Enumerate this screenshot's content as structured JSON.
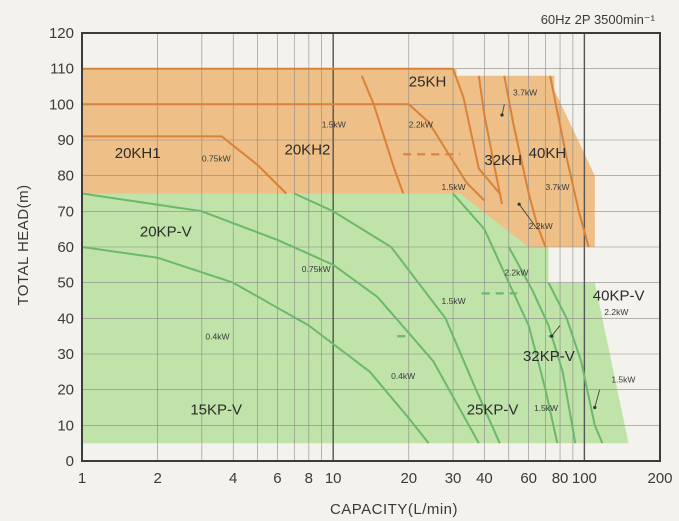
{
  "chart_data": {
    "type": "area",
    "title": "60Hz 2P 3500min⁻¹",
    "xlabel": "CAPACITY(L/min)",
    "ylabel": "TOTAL HEAD(m)",
    "xscale": "log",
    "xlim": [
      1,
      200
    ],
    "ylim": [
      0,
      120
    ],
    "xticks": [
      {
        "v": 1,
        "label": "1"
      },
      {
        "v": 2,
        "label": "2"
      },
      {
        "v": 4,
        "label": "4"
      },
      {
        "v": 6,
        "label": "6"
      },
      {
        "v": 8,
        "label": "8"
      },
      {
        "v": 10,
        "label": "10"
      },
      {
        "v": 20,
        "label": "20"
      },
      {
        "v": 30,
        "label": "30"
      },
      {
        "v": 40,
        "label": "40"
      },
      {
        "v": 60,
        "label": "60"
      },
      {
        "v": 80,
        "label": "80"
      },
      {
        "v": 100,
        "label": "100"
      },
      {
        "v": 200,
        "label": "200"
      }
    ],
    "yticks": [
      0,
      10,
      20,
      30,
      40,
      50,
      60,
      70,
      80,
      90,
      100,
      110,
      120
    ],
    "grid": true,
    "colors": {
      "kh_region": "#eebf86",
      "kp_region": "#bfe3a8",
      "kh_curve": "#d8823a",
      "kp_curve": "#6cb86c",
      "frame": "#3c3c3c",
      "grid": "#8a8a8a"
    },
    "regions": [
      {
        "id": "kh",
        "points": [
          [
            1,
            75
          ],
          [
            1,
            110
          ],
          [
            31,
            110
          ],
          [
            31,
            108
          ],
          [
            76,
            108
          ],
          [
            76,
            104
          ],
          [
            110,
            80
          ],
          [
            110,
            60
          ],
          [
            72,
            60
          ],
          [
            72,
            50
          ],
          [
            30,
            50
          ],
          [
            30,
            75
          ]
        ]
      },
      {
        "id": "kp",
        "points": [
          [
            1,
            75
          ],
          [
            30,
            75
          ],
          [
            32,
            75
          ],
          [
            60,
            60
          ],
          [
            72,
            60
          ],
          [
            72,
            50
          ],
          [
            110,
            50
          ],
          [
            150,
            5
          ],
          [
            1,
            5
          ]
        ]
      }
    ],
    "series": [
      {
        "model": "kh",
        "points": [
          [
            1,
            110
          ],
          [
            30,
            110
          ],
          [
            33,
            102
          ],
          [
            38,
            82
          ],
          [
            46,
            75
          ]
        ]
      },
      {
        "model": "kh",
        "points": [
          [
            1,
            100
          ],
          [
            20,
            100
          ],
          [
            24,
            95
          ],
          [
            34,
            78
          ],
          [
            40,
            73
          ]
        ]
      },
      {
        "model": "kh",
        "points": [
          [
            1,
            91
          ],
          [
            3.6,
            91
          ],
          [
            5,
            83
          ],
          [
            6.5,
            75
          ]
        ]
      },
      {
        "model": "kh",
        "points": [
          [
            13,
            108
          ],
          [
            14.5,
            100
          ],
          [
            17.5,
            82
          ],
          [
            19,
            75
          ]
        ]
      },
      {
        "model": "kh",
        "points": [
          [
            38,
            108
          ],
          [
            40,
            97
          ],
          [
            44,
            82
          ],
          [
            47,
            72
          ]
        ]
      },
      {
        "model": "kh",
        "points": [
          [
            48,
            108
          ],
          [
            52,
            95
          ],
          [
            60,
            75
          ],
          [
            65,
            66
          ],
          [
            70,
            60
          ]
        ]
      },
      {
        "model": "kh",
        "points": [
          [
            73,
            108
          ],
          [
            78,
            98
          ],
          [
            85,
            85
          ],
          [
            95,
            70
          ],
          [
            104,
            60
          ]
        ]
      },
      {
        "model": "kp",
        "points": [
          [
            1,
            60
          ],
          [
            2,
            57
          ],
          [
            4,
            50
          ],
          [
            8,
            38
          ],
          [
            14,
            25
          ],
          [
            20,
            12
          ],
          [
            24,
            5
          ]
        ]
      },
      {
        "model": "kp",
        "points": [
          [
            1,
            75
          ],
          [
            3,
            70
          ],
          [
            6,
            62
          ],
          [
            10,
            55
          ],
          [
            15,
            46
          ],
          [
            25,
            28
          ],
          [
            38,
            5
          ]
        ]
      },
      {
        "model": "kp",
        "points": [
          [
            7,
            75
          ],
          [
            10,
            70
          ],
          [
            17,
            60
          ],
          [
            28,
            40
          ],
          [
            36,
            22
          ],
          [
            46,
            5
          ]
        ]
      },
      {
        "model": "kp",
        "points": [
          [
            30,
            75
          ],
          [
            40,
            65
          ],
          [
            50,
            50
          ],
          [
            60,
            38
          ],
          [
            70,
            20
          ],
          [
            78,
            5
          ]
        ]
      },
      {
        "model": "kp",
        "points": [
          [
            50,
            60
          ],
          [
            62,
            48
          ],
          [
            72,
            38
          ],
          [
            82,
            25
          ],
          [
            92,
            5
          ]
        ]
      },
      {
        "model": "kp",
        "points": [
          [
            72,
            50
          ],
          [
            85,
            40
          ],
          [
            97,
            28
          ],
          [
            110,
            10
          ],
          [
            118,
            5
          ]
        ]
      }
    ],
    "dashed_limits": [
      {
        "points": [
          [
            19,
            86
          ],
          [
            32,
            86
          ]
        ]
      },
      {
        "points": [
          [
            39,
            47
          ],
          [
            54,
            47
          ]
        ]
      },
      {
        "points": [
          [
            18,
            35
          ],
          [
            20,
            35
          ]
        ]
      },
      {
        "points": [
          [
            72,
            35
          ],
          [
            76,
            35
          ]
        ]
      }
    ],
    "model_labels": [
      {
        "text": "20KH1",
        "at": [
          1.35,
          85
        ]
      },
      {
        "text": "20KH2",
        "at": [
          6.4,
          86
        ]
      },
      {
        "text": "25KH",
        "at": [
          20,
          105
        ]
      },
      {
        "text": "32KH",
        "at": [
          40,
          83
        ]
      },
      {
        "text": "40KH",
        "at": [
          60,
          85
        ]
      },
      {
        "text": "20KP-V",
        "at": [
          1.7,
          63
        ]
      },
      {
        "text": "40KP-V",
        "at": [
          108,
          45
        ]
      },
      {
        "text": "32KP-V",
        "at": [
          57,
          28
        ]
      },
      {
        "text": "15KP-V",
        "at": [
          2.7,
          13
        ]
      },
      {
        "text": "25KP-V",
        "at": [
          34,
          13
        ]
      }
    ],
    "kw_labels": [
      {
        "text": "1.5kW",
        "at": [
          9.0,
          93.5
        ]
      },
      {
        "text": "0.75kW",
        "at": [
          3.0,
          84
        ]
      },
      {
        "text": "2.2kW",
        "at": [
          20,
          93.5
        ]
      },
      {
        "text": "3.7kW",
        "at": [
          52,
          102.5
        ]
      },
      {
        "text": "1.5kW",
        "at": [
          27,
          76
        ]
      },
      {
        "text": "3.7kW",
        "at": [
          70,
          76
        ]
      },
      {
        "text": "2.2kW",
        "at": [
          60,
          65
        ]
      },
      {
        "text": "0.75kW",
        "at": [
          7.5,
          53
        ]
      },
      {
        "text": "2.2kW",
        "at": [
          48,
          52
        ]
      },
      {
        "text": "1.5kW",
        "at": [
          27,
          44
        ]
      },
      {
        "text": "2.2kW",
        "at": [
          120,
          41
        ]
      },
      {
        "text": "0.4kW",
        "at": [
          3.1,
          34
        ]
      },
      {
        "text": "0.4kW",
        "at": [
          17,
          23
        ]
      },
      {
        "text": "1.5kW",
        "at": [
          128,
          22
        ]
      },
      {
        "text": "1.5kW",
        "at": [
          63,
          14
        ]
      }
    ],
    "pointers": [
      {
        "from": [
          48,
          100
        ],
        "to": [
          47,
          97
        ]
      },
      {
        "from": [
          65,
          65
        ],
        "to": [
          55,
          72
        ]
      },
      {
        "from": [
          80,
          38
        ],
        "to": [
          74,
          35
        ]
      },
      {
        "from": [
          115,
          20
        ],
        "to": [
          110,
          15
        ]
      }
    ]
  }
}
